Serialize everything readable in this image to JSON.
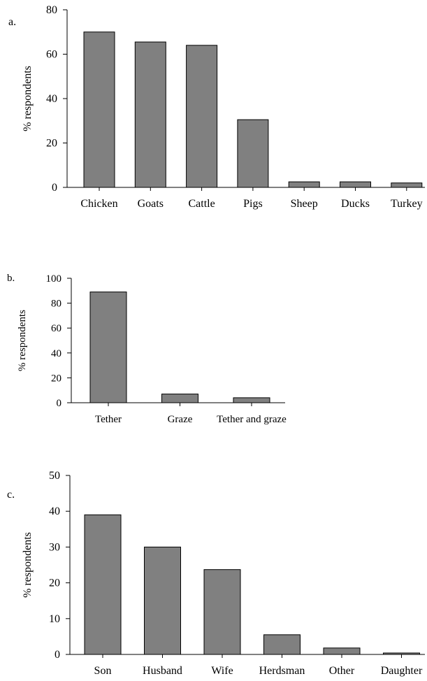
{
  "colors": {
    "bar_fill": "#808080",
    "bar_stroke": "#000000",
    "axis": "#000000"
  },
  "chart_data": [
    {
      "type": "bar",
      "panel_label": "a.",
      "ylabel": "% respondents",
      "xlabel": "",
      "ylim": [
        0,
        80
      ],
      "yticks": [
        0,
        20,
        40,
        60,
        80
      ],
      "grid": false,
      "categories": [
        "Chicken",
        "Goats",
        "Cattle",
        "Pigs",
        "Sheep",
        "Ducks",
        "Turkey"
      ],
      "values": [
        70,
        65.5,
        64,
        30.5,
        2.5,
        2.5,
        2
      ]
    },
    {
      "type": "bar",
      "panel_label": "b.",
      "ylabel": "% respondents",
      "xlabel": "",
      "ylim": [
        0,
        100
      ],
      "yticks": [
        0,
        20,
        40,
        60,
        80,
        100
      ],
      "grid": false,
      "categories": [
        "Tether",
        "Graze",
        "Tether and graze"
      ],
      "values": [
        89,
        7,
        4
      ]
    },
    {
      "type": "bar",
      "panel_label": "c.",
      "ylabel": "% respondents",
      "xlabel": "",
      "ylim": [
        0,
        50
      ],
      "yticks": [
        0,
        10,
        20,
        30,
        40,
        50
      ],
      "grid": false,
      "categories": [
        "Son",
        "Husband",
        "Wife",
        "Herdsman",
        "Other",
        "Daughter"
      ],
      "values": [
        39,
        30,
        23.7,
        5.5,
        1.8,
        0.4
      ]
    }
  ]
}
